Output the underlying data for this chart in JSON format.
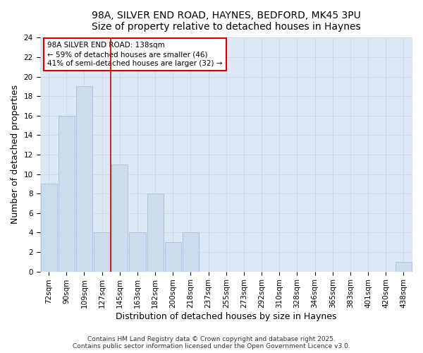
{
  "title_line1": "98A, SILVER END ROAD, HAYNES, BEDFORD, MK45 3PU",
  "title_line2": "Size of property relative to detached houses in Haynes",
  "xlabel": "Distribution of detached houses by size in Haynes",
  "ylabel": "Number of detached properties",
  "categories": [
    "72sqm",
    "90sqm",
    "109sqm",
    "127sqm",
    "145sqm",
    "163sqm",
    "182sqm",
    "200sqm",
    "218sqm",
    "237sqm",
    "255sqm",
    "273sqm",
    "292sqm",
    "310sqm",
    "328sqm",
    "346sqm",
    "365sqm",
    "383sqm",
    "401sqm",
    "420sqm",
    "438sqm"
  ],
  "values": [
    9,
    16,
    19,
    4,
    11,
    4,
    8,
    3,
    4,
    0,
    0,
    0,
    0,
    0,
    0,
    0,
    0,
    0,
    0,
    0,
    1
  ],
  "bar_color": "#ccdcee",
  "bar_edge_color": "#aac4de",
  "vline_x_index": 3.5,
  "vline_color": "#cc0000",
  "annotation_text": "98A SILVER END ROAD: 138sqm\n← 59% of detached houses are smaller (46)\n41% of semi-detached houses are larger (32) →",
  "annotation_box_facecolor": "#ffffff",
  "annotation_box_edgecolor": "#cc0000",
  "ylim": [
    0,
    24
  ],
  "yticks": [
    0,
    2,
    4,
    6,
    8,
    10,
    12,
    14,
    16,
    18,
    20,
    22,
    24
  ],
  "grid_color": "#d0d8e8",
  "fig_bg_color": "#ffffff",
  "plot_bg_color": "#dce8f4",
  "footer_text": "Contains HM Land Registry data © Crown copyright and database right 2025.\nContains public sector information licensed under the Open Government Licence v3.0.",
  "title_fontsize": 10,
  "axis_label_fontsize": 9,
  "tick_fontsize": 7.5,
  "annotation_fontsize": 7.5,
  "footer_fontsize": 6.5
}
